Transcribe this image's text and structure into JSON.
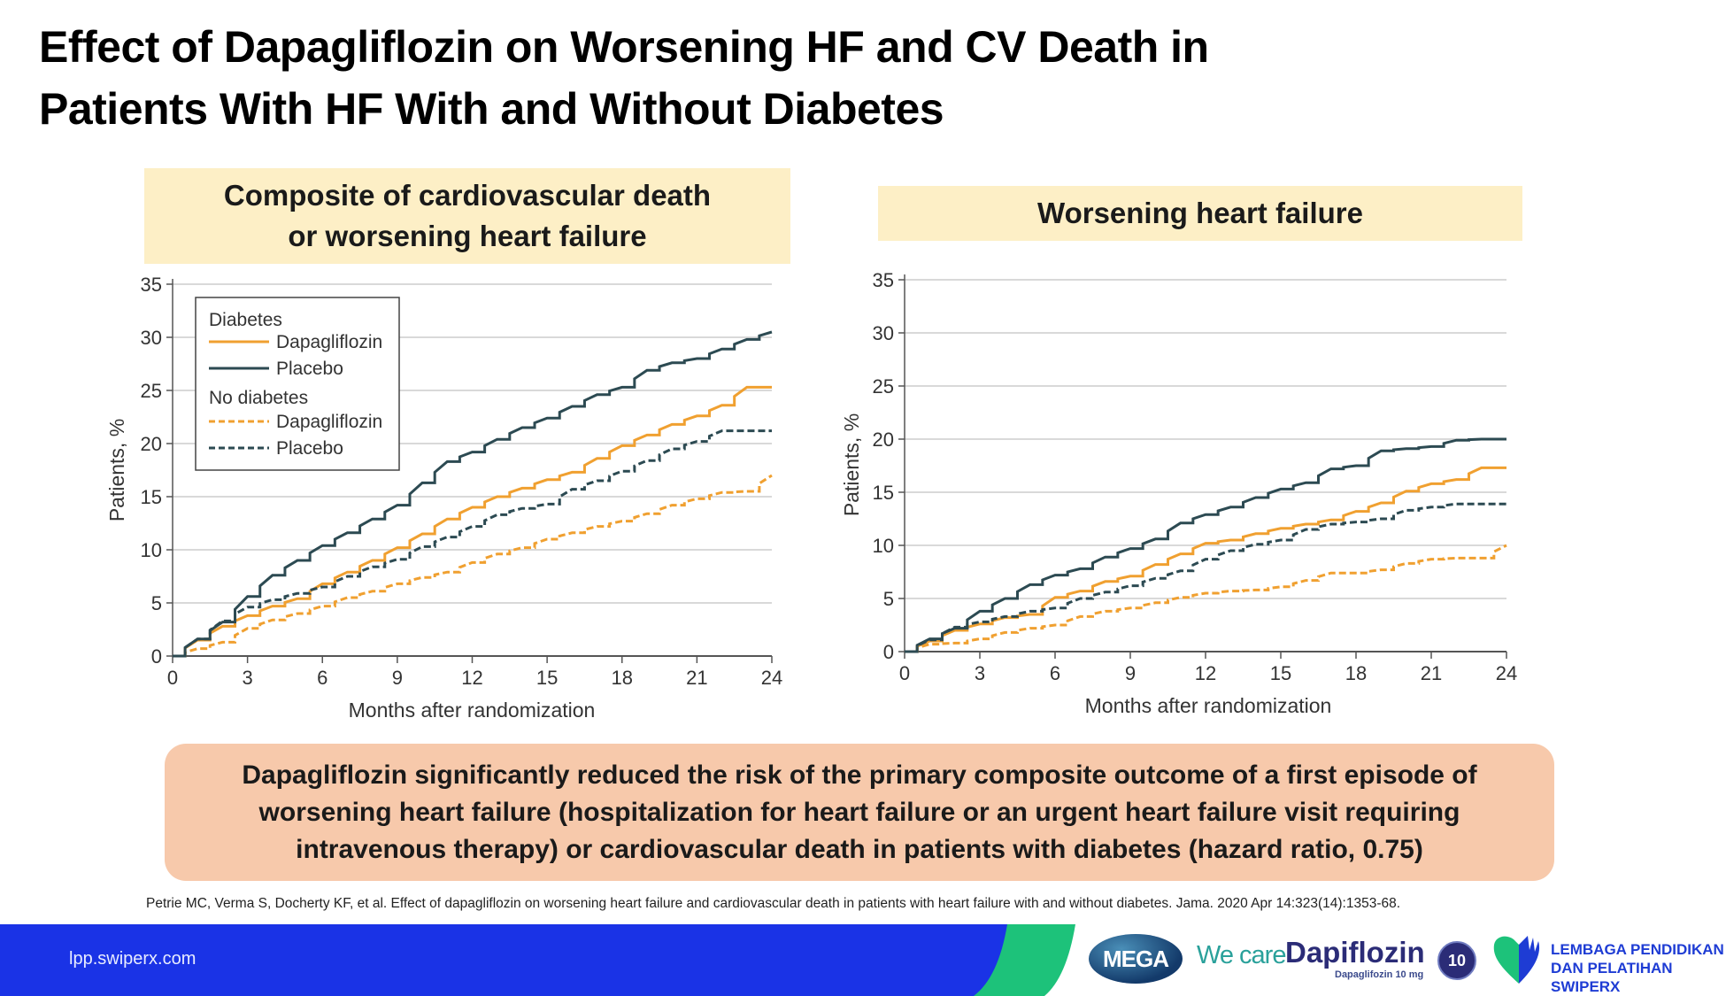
{
  "title_line1": "Effect of Dapagliflozin on Worsening HF and CV Death in",
  "title_line2": "Patients With HF With and Without Diabetes",
  "panels": {
    "left_header": "Composite of cardiovascular death or worsening heart failure",
    "right_header": "Worsening heart failure"
  },
  "colors": {
    "dapagliflozin": "#F0A030",
    "placebo": "#2C4A52",
    "panel_header_bg": "#FDEFC6",
    "summary_bg": "#F7C9AB",
    "footer_blue": "#1A33E6",
    "footer_green": "#1DC27A"
  },
  "legend": {
    "group1": "Diabetes",
    "group1_drug": "Dapagliflozin",
    "group1_placebo": "Placebo",
    "group2": "No diabetes",
    "group2_drug": "Dapagliflozin",
    "group2_placebo": "Placebo"
  },
  "chart_data": [
    {
      "type": "line",
      "title": "Composite of cardiovascular death or worsening heart failure",
      "xlabel": "Months after randomization",
      "ylabel": "Patients, %",
      "xlim": [
        0,
        24
      ],
      "ylim": [
        0,
        35
      ],
      "xticks": [
        0,
        3,
        6,
        9,
        12,
        15,
        18,
        21,
        24
      ],
      "yticks": [
        0,
        5,
        10,
        15,
        20,
        25,
        30,
        35
      ],
      "grid": "horizontal",
      "legend_position": "top-left",
      "series": [
        {
          "name": "Diabetes – Dapagliflozin",
          "style": "solid",
          "color": "dapagliflozin",
          "x": [
            0,
            1,
            2,
            3,
            4,
            5,
            6,
            7,
            8,
            9,
            10,
            11,
            12,
            13,
            14,
            15,
            16,
            17,
            18,
            19,
            20,
            21,
            22,
            23,
            24
          ],
          "y": [
            0,
            1.5,
            2.8,
            3.8,
            4.7,
            5.4,
            6.8,
            7.9,
            9.0,
            10.2,
            11.5,
            12.9,
            14.0,
            15.0,
            15.8,
            16.6,
            17.3,
            18.6,
            19.8,
            20.8,
            21.8,
            22.6,
            23.6,
            25.3,
            25.3
          ]
        },
        {
          "name": "Diabetes – Placebo",
          "style": "solid",
          "color": "placebo",
          "x": [
            0,
            1,
            2,
            3,
            4,
            5,
            6,
            7,
            8,
            9,
            10,
            11,
            12,
            13,
            14,
            15,
            16,
            17,
            18,
            19,
            20,
            21,
            22,
            23,
            24
          ],
          "y": [
            0,
            1.6,
            3.2,
            5.6,
            7.6,
            9.0,
            10.4,
            11.6,
            12.9,
            14.2,
            16.3,
            18.3,
            19.2,
            20.4,
            21.5,
            22.4,
            23.5,
            24.6,
            25.3,
            26.9,
            27.6,
            28.0,
            28.9,
            29.8,
            30.5
          ]
        },
        {
          "name": "No diabetes – Dapagliflozin",
          "style": "dashed",
          "color": "dapagliflozin",
          "x": [
            0,
            1,
            2,
            3,
            4,
            5,
            6,
            7,
            8,
            9,
            10,
            11,
            12,
            13,
            14,
            15,
            16,
            17,
            18,
            19,
            20,
            21,
            22,
            23,
            24
          ],
          "y": [
            0,
            0.7,
            1.3,
            2.6,
            3.4,
            4.0,
            4.7,
            5.5,
            6.1,
            6.8,
            7.4,
            7.9,
            8.8,
            9.6,
            10.2,
            11.0,
            11.6,
            12.2,
            12.7,
            13.4,
            14.2,
            14.8,
            15.4,
            15.5,
            17.0
          ]
        },
        {
          "name": "No diabetes – Placebo",
          "style": "dashed",
          "color": "placebo",
          "x": [
            0,
            1,
            2,
            3,
            4,
            5,
            6,
            7,
            8,
            9,
            10,
            11,
            12,
            13,
            14,
            15,
            16,
            17,
            18,
            19,
            20,
            21,
            22,
            23,
            24
          ],
          "y": [
            0,
            1.6,
            3.3,
            4.6,
            5.3,
            5.9,
            6.5,
            7.5,
            8.4,
            9.1,
            10.3,
            11.2,
            12.2,
            13.3,
            13.9,
            14.3,
            15.7,
            16.5,
            17.4,
            18.4,
            19.5,
            20.2,
            21.2,
            21.2,
            21.2
          ]
        }
      ]
    },
    {
      "type": "line",
      "title": "Worsening heart failure",
      "xlabel": "Months after randomization",
      "ylabel": "Patients, %",
      "xlim": [
        0,
        24
      ],
      "ylim": [
        0,
        35
      ],
      "xticks": [
        0,
        3,
        6,
        9,
        12,
        15,
        18,
        21,
        24
      ],
      "yticks": [
        0,
        5,
        10,
        15,
        20,
        25,
        30,
        35
      ],
      "grid": "horizontal",
      "series": [
        {
          "name": "Diabetes – Dapagliflozin",
          "style": "solid",
          "color": "dapagliflozin",
          "x": [
            0,
            1,
            2,
            3,
            4,
            5,
            6,
            7,
            8,
            9,
            10,
            11,
            12,
            13,
            14,
            15,
            16,
            17,
            18,
            19,
            20,
            21,
            22,
            23,
            24
          ],
          "y": [
            0,
            1.0,
            2.0,
            2.6,
            3.2,
            3.5,
            5.1,
            5.7,
            6.6,
            7.1,
            8.2,
            9.2,
            10.2,
            10.5,
            11.1,
            11.6,
            12.0,
            12.4,
            13.2,
            14.0,
            15.1,
            15.8,
            16.2,
            17.3,
            17.3
          ]
        },
        {
          "name": "Diabetes – Placebo",
          "style": "solid",
          "color": "placebo",
          "x": [
            0,
            1,
            2,
            3,
            4,
            5,
            6,
            7,
            8,
            9,
            10,
            11,
            12,
            13,
            14,
            15,
            16,
            17,
            18,
            19,
            20,
            21,
            22,
            23,
            24
          ],
          "y": [
            0,
            1.2,
            2.2,
            3.8,
            5.0,
            6.3,
            7.2,
            7.8,
            8.9,
            9.7,
            10.6,
            12.1,
            12.9,
            13.6,
            14.5,
            15.3,
            15.9,
            17.2,
            17.5,
            18.9,
            19.1,
            19.3,
            19.9,
            20.0,
            20.0
          ]
        },
        {
          "name": "No diabetes – Dapagliflozin",
          "style": "dashed",
          "color": "dapagliflozin",
          "x": [
            0,
            1,
            2,
            3,
            4,
            5,
            6,
            7,
            8,
            9,
            10,
            11,
            12,
            13,
            14,
            15,
            16,
            17,
            18,
            19,
            20,
            21,
            22,
            23,
            24
          ],
          "y": [
            0,
            0.7,
            0.8,
            1.2,
            1.8,
            2.2,
            2.5,
            3.3,
            3.8,
            4.1,
            4.6,
            5.1,
            5.5,
            5.7,
            5.8,
            6.1,
            6.7,
            7.4,
            7.4,
            7.7,
            8.3,
            8.7,
            8.8,
            8.8,
            10.0
          ]
        },
        {
          "name": "No diabetes – Placebo",
          "style": "dashed",
          "color": "placebo",
          "x": [
            0,
            1,
            2,
            3,
            4,
            5,
            6,
            7,
            8,
            9,
            10,
            11,
            12,
            13,
            14,
            15,
            16,
            17,
            18,
            19,
            20,
            21,
            22,
            23,
            24
          ],
          "y": [
            0,
            1.1,
            2.3,
            2.8,
            3.3,
            3.8,
            4.1,
            5.0,
            5.6,
            6.2,
            6.9,
            7.6,
            8.7,
            9.5,
            10.1,
            10.5,
            11.5,
            12.0,
            12.2,
            12.5,
            13.3,
            13.6,
            13.9,
            13.9,
            13.9
          ]
        }
      ]
    }
  ],
  "summary": "Dapagliflozin significantly reduced the risk of the primary composite outcome of a first episode of worsening heart failure (hospitalization for heart failure or an urgent heart failure visit requiring intravenous therapy) or cardiovascular death in patients with diabetes (hazard ratio, 0.75)",
  "citation": "Petrie MC, Verma S, Docherty KF, et al. Effect of dapagliflozin on worsening heart failure and cardiovascular death in patients with heart failure with and without diabetes. Jama. 2020 Apr 14:323(14):1353-68.",
  "footer": {
    "url": "lpp.swiperx.com",
    "logo_mega": "MEGA",
    "tagline": "We care",
    "brand": "Dapiflozin",
    "brand_sub": "Dapaglifozin 10 mg",
    "brand_badge": "10",
    "org_line1": "LEMBAGA PENDIDIKAN",
    "org_line2": "DAN PELATIHAN SWIPERX"
  }
}
